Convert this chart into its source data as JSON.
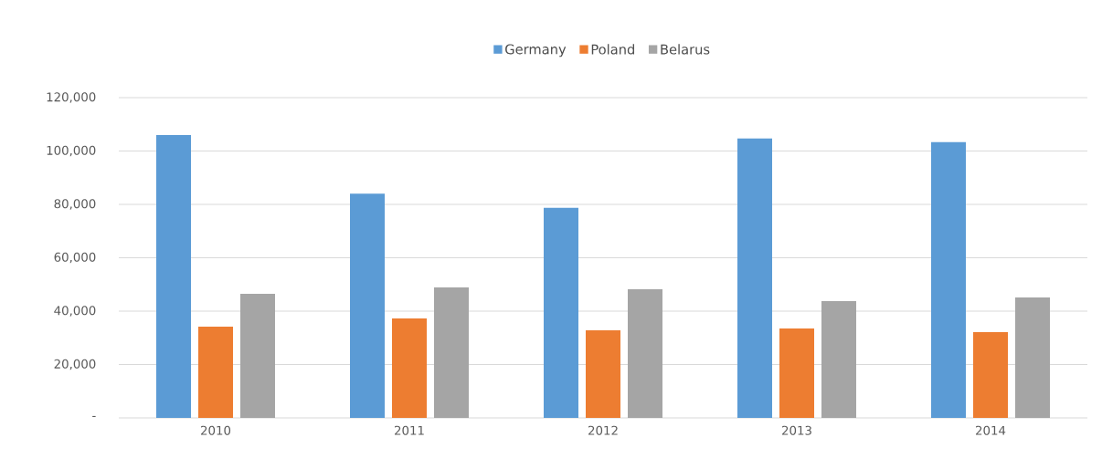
{
  "chart_data": {
    "type": "bar",
    "categories": [
      "2010",
      "2011",
      "2012",
      "2013",
      "2014"
    ],
    "series": [
      {
        "name": "Germany",
        "color": "#5b9bd5",
        "values": [
          106000,
          84000,
          78700,
          104700,
          103300
        ]
      },
      {
        "name": "Poland",
        "color": "#ed7d31",
        "values": [
          34200,
          37300,
          32800,
          33500,
          32100
        ]
      },
      {
        "name": "Belarus",
        "color": "#a5a5a5",
        "values": [
          46500,
          48900,
          48200,
          43800,
          45100
        ]
      }
    ],
    "ylim": [
      0,
      120000
    ],
    "yticks": [
      {
        "value": 0,
        "label": "-"
      },
      {
        "value": 20000,
        "label": "20,000"
      },
      {
        "value": 40000,
        "label": "40,000"
      },
      {
        "value": 60000,
        "label": "60,000"
      },
      {
        "value": 80000,
        "label": "80,000"
      },
      {
        "value": 100000,
        "label": "100,000"
      },
      {
        "value": 120000,
        "label": "120,000"
      }
    ],
    "grid": "y",
    "legend": "top"
  }
}
